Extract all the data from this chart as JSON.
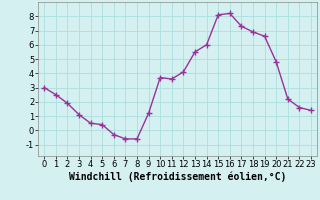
{
  "x": [
    0,
    1,
    2,
    3,
    4,
    5,
    6,
    7,
    8,
    9,
    10,
    11,
    12,
    13,
    14,
    15,
    16,
    17,
    18,
    19,
    20,
    21,
    22,
    23
  ],
  "y": [
    3.0,
    2.5,
    1.9,
    1.1,
    0.5,
    0.4,
    -0.3,
    -0.6,
    -0.6,
    1.2,
    3.7,
    3.6,
    4.1,
    5.5,
    6.0,
    8.1,
    8.2,
    7.3,
    6.9,
    6.6,
    4.8,
    2.2,
    1.6,
    1.4
  ],
  "line_color": "#993399",
  "marker": "+",
  "marker_color": "#993399",
  "bg_color": "#d4f0f0",
  "grid_color": "#aadddd",
  "xlabel": "Windchill (Refroidissement éolien,°C)",
  "xlim": [
    -0.5,
    23.5
  ],
  "ylim": [
    -1.8,
    9.0
  ],
  "yticks": [
    -1,
    0,
    1,
    2,
    3,
    4,
    5,
    6,
    7,
    8
  ],
  "xticks": [
    0,
    1,
    2,
    3,
    4,
    5,
    6,
    7,
    8,
    9,
    10,
    11,
    12,
    13,
    14,
    15,
    16,
    17,
    18,
    19,
    20,
    21,
    22,
    23
  ],
  "xlabel_fontsize": 7,
  "tick_fontsize": 6,
  "line_width": 1.0,
  "marker_size": 4
}
